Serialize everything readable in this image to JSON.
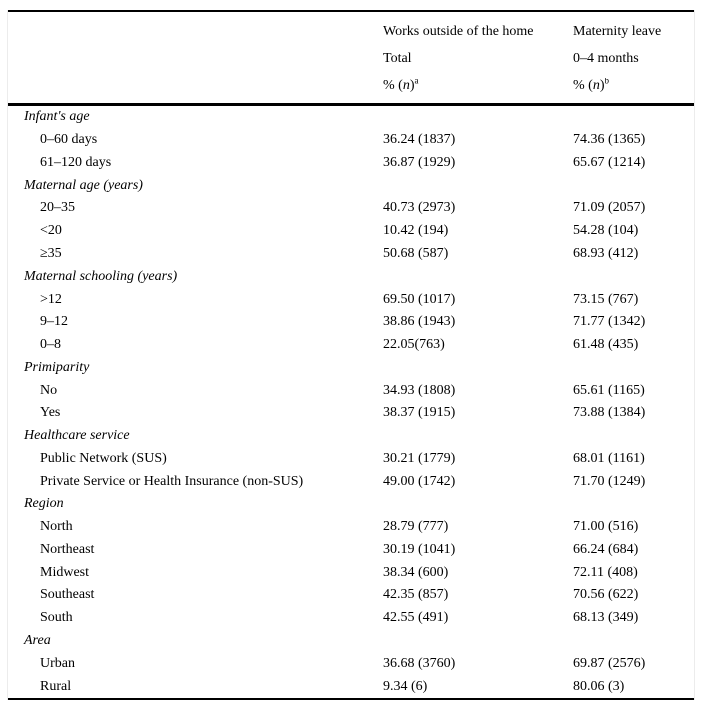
{
  "figure": {
    "header": {
      "col1": {
        "group": "Works outside of the home",
        "sub": "Total",
        "measure_prefix": "% (",
        "measure_n": "n",
        "measure_close": ")",
        "footnote": "a"
      },
      "col2": {
        "group": "Maternity leave",
        "sub": "0–4 months",
        "measure_prefix": "% (",
        "measure_n": "n",
        "measure_close": ")",
        "footnote": "b"
      }
    },
    "sections": [
      {
        "label": "Infant's age",
        "rows": [
          {
            "label": "0–60 days",
            "works_outside": "36.24 (1837)",
            "maternity_leave": "74.36 (1365)"
          },
          {
            "label": "61–120 days",
            "works_outside": "36.87 (1929)",
            "maternity_leave": "65.67 (1214)"
          }
        ]
      },
      {
        "label": "Maternal age (years)",
        "rows": [
          {
            "label": "20–35",
            "works_outside": "40.73 (2973)",
            "maternity_leave": "71.09 (2057)"
          },
          {
            "label": "<20",
            "works_outside": "10.42 (194)",
            "maternity_leave": "54.28 (104)"
          },
          {
            "label": "≥35",
            "works_outside": "50.68 (587)",
            "maternity_leave": "68.93 (412)"
          }
        ]
      },
      {
        "label": "Maternal schooling (years)",
        "rows": [
          {
            "label": ">12",
            "works_outside": "69.50 (1017)",
            "maternity_leave": "73.15 (767)"
          },
          {
            "label": "9–12",
            "works_outside": "38.86 (1943)",
            "maternity_leave": "71.77 (1342)"
          },
          {
            "label": "0–8",
            "works_outside": "22.05(763)",
            "maternity_leave": "61.48 (435)"
          }
        ]
      },
      {
        "label": "Primiparity",
        "rows": [
          {
            "label": "No",
            "works_outside": "34.93 (1808)",
            "maternity_leave": "65.61 (1165)"
          },
          {
            "label": "Yes",
            "works_outside": "38.37 (1915)",
            "maternity_leave": "73.88 (1384)"
          }
        ]
      },
      {
        "label": "Healthcare service",
        "rows": [
          {
            "label": "Public Network (SUS)",
            "works_outside": "30.21 (1779)",
            "maternity_leave": "68.01 (1161)"
          },
          {
            "label": "Private Service or Health Insurance (non-SUS)",
            "works_outside": "49.00 (1742)",
            "maternity_leave": "71.70 (1249)"
          }
        ]
      },
      {
        "label": "Region",
        "rows": [
          {
            "label": "North",
            "works_outside": "28.79 (777)",
            "maternity_leave": "71.00 (516)"
          },
          {
            "label": "Northeast",
            "works_outside": "30.19 (1041)",
            "maternity_leave": "66.24 (684)"
          },
          {
            "label": "Midwest",
            "works_outside": "38.34 (600)",
            "maternity_leave": "72.11 (408)"
          },
          {
            "label": "Southeast",
            "works_outside": "42.35 (857)",
            "maternity_leave": "70.56 (622)"
          },
          {
            "label": "South",
            "works_outside": "42.55 (491)",
            "maternity_leave": "68.13 (349)"
          }
        ]
      },
      {
        "label": "Area",
        "rows": [
          {
            "label": "Urban",
            "works_outside": "36.68 (3760)",
            "maternity_leave": "69.87 (2576)"
          },
          {
            "label": "Rural",
            "works_outside": "9.34 (6)",
            "maternity_leave": "80.06 (3)"
          }
        ]
      }
    ],
    "colors": {
      "text": "#000000",
      "rule": "#000000",
      "frame_edge": "#ececec",
      "background": "#ffffff"
    }
  }
}
